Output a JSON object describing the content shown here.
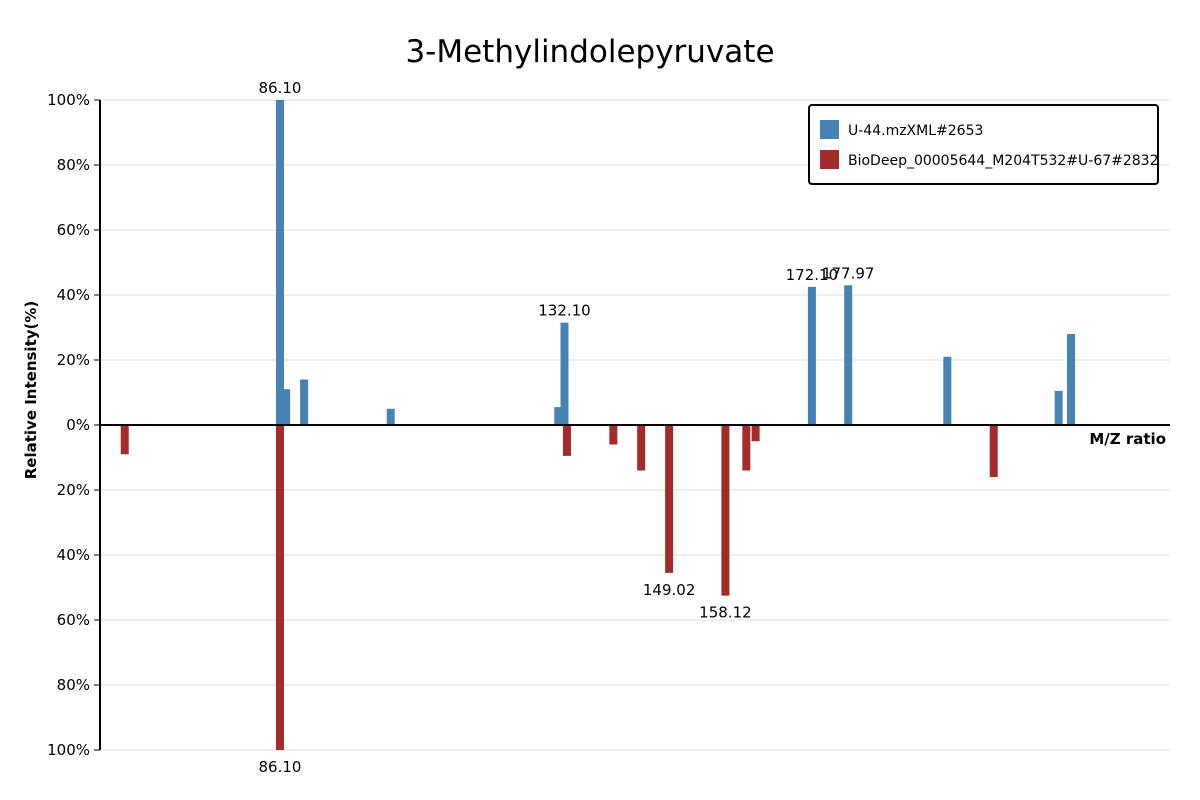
{
  "chart_data": {
    "type": "bar",
    "title": "3-Methylindolepyruvate",
    "xlabel": "M/Z ratio",
    "ylabel": "Relative Intensity(%)",
    "xlim": [
      57,
      230
    ],
    "ylim": [
      -100,
      100
    ],
    "ytick_values": [
      100,
      80,
      60,
      40,
      20,
      0,
      -20,
      -40,
      -60,
      -80,
      -100
    ],
    "ytick_labels": [
      "100%",
      "80%",
      "60%",
      "40%",
      "20%",
      "0%",
      "20%",
      "40%",
      "60%",
      "80%",
      "100%"
    ],
    "grid": true,
    "legend_position": "top-right",
    "series": [
      {
        "name": "U-44.mzXML#2653",
        "color": "#4682b4",
        "direction": "up",
        "points": [
          {
            "mz": 86.1,
            "intensity": 100,
            "label": "86.10"
          },
          {
            "mz": 87.1,
            "intensity": 11
          },
          {
            "mz": 90.0,
            "intensity": 14
          },
          {
            "mz": 104.0,
            "intensity": 5
          },
          {
            "mz": 131.1,
            "intensity": 5.5
          },
          {
            "mz": 132.1,
            "intensity": 31.5,
            "label": "132.10"
          },
          {
            "mz": 172.1,
            "intensity": 42.5,
            "label": "172.10"
          },
          {
            "mz": 177.97,
            "intensity": 43,
            "label": "177.97"
          },
          {
            "mz": 194.0,
            "intensity": 21
          },
          {
            "mz": 212.0,
            "intensity": 10.5
          },
          {
            "mz": 214.0,
            "intensity": 28
          }
        ]
      },
      {
        "name": "BioDeep_00005644_M204T532#U-67#2832",
        "color": "#a52a2a",
        "direction": "down",
        "points": [
          {
            "mz": 61.0,
            "intensity": 9
          },
          {
            "mz": 86.1,
            "intensity": 100,
            "label": "86.10"
          },
          {
            "mz": 132.5,
            "intensity": 9.5
          },
          {
            "mz": 140.0,
            "intensity": 6
          },
          {
            "mz": 144.5,
            "intensity": 14
          },
          {
            "mz": 149.02,
            "intensity": 45.5,
            "label": "149.02"
          },
          {
            "mz": 158.12,
            "intensity": 52.5,
            "label": "158.12"
          },
          {
            "mz": 161.5,
            "intensity": 14
          },
          {
            "mz": 163.0,
            "intensity": 5
          },
          {
            "mz": 201.5,
            "intensity": 16
          }
        ]
      }
    ]
  }
}
